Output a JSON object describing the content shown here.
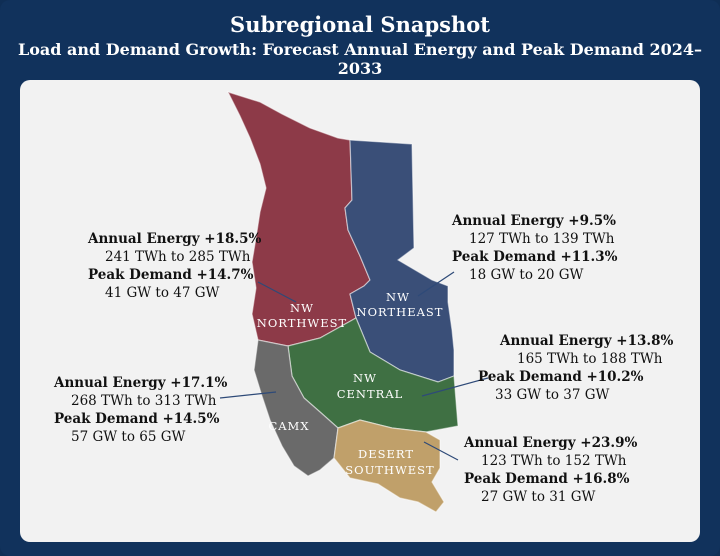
{
  "title": "Subregional Snapshot",
  "subtitle": "Load and Demand Growth: Forecast Annual Energy and Peak Demand 2024–2033",
  "colors": {
    "nw_northwest": "#8d3a48",
    "nw_northeast": "#3a4f78",
    "nw_central": "#3f7043",
    "camx": "#6a6a6a",
    "desert_southwest": "#c0a06a"
  },
  "regions": {
    "nw_northwest": {
      "label_line1": "NW",
      "label_line2": "NORTHWEST",
      "energy_label": "Annual Energy +18.5%",
      "energy_range": "241 TWh to 285 TWh",
      "peak_label": "Peak Demand +14.7%",
      "peak_range": "41 GW to 47 GW"
    },
    "nw_northeast": {
      "label_line1": "NW",
      "label_line2": "NORTHEAST",
      "energy_label": "Annual Energy +9.5%",
      "energy_range": "127 TWh to 139 TWh",
      "peak_label": "Peak Demand +11.3%",
      "peak_range": "18 GW to 20 GW"
    },
    "nw_central": {
      "label_line1": "NW",
      "label_line2": "CENTRAL",
      "energy_label": "Annual Energy +13.8%",
      "energy_range": "165 TWh to 188 TWh",
      "peak_label": "Peak Demand +10.2%",
      "peak_range": "33 GW to 37 GW"
    },
    "camx": {
      "label_line1": "CAMX",
      "energy_label": "Annual Energy +17.1%",
      "energy_range": "268 TWh to 313 TWh",
      "peak_label": "Peak Demand +14.5%",
      "peak_range": "57 GW to 65 GW"
    },
    "desert_southwest": {
      "label_line1": "DESERT",
      "label_line2": "SOUTHWEST",
      "energy_label": "Annual Energy +23.9%",
      "energy_range": "123 TWh to 152 TWh",
      "peak_label": "Peak Demand +16.8%",
      "peak_range": "27 GW to 31 GW"
    }
  }
}
